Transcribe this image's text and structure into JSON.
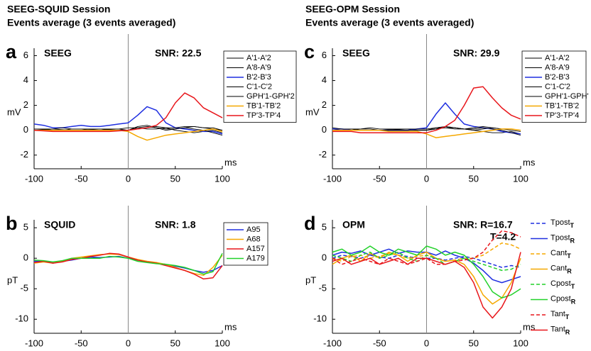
{
  "sessions": [
    {
      "title": "SEEG-SQUID Session",
      "subtitle": "Events average (3 events averaged)"
    },
    {
      "title": "SEEG-OPM Session",
      "subtitle": "Events average (3 events averaged)"
    }
  ],
  "chart_data": [
    {
      "type": "line",
      "panel": "a",
      "title": "SEEG",
      "snr": [
        "SNR: 22.5"
      ],
      "ylabel": "mV",
      "xlabel": "ms",
      "x": [
        -100,
        -90,
        -80,
        -70,
        -60,
        -50,
        -40,
        -30,
        -20,
        -10,
        0,
        10,
        20,
        30,
        40,
        50,
        60,
        70,
        80,
        90,
        100
      ],
      "xlim": [
        -100,
        100
      ],
      "xticks": [
        -100,
        -50,
        0,
        50,
        100
      ],
      "ylim": [
        -3.1,
        6.6
      ],
      "yticks": [
        -2,
        0,
        2,
        4,
        6
      ],
      "legend_box": true,
      "series": [
        {
          "name": "A'1-A'2",
          "color": "#000000",
          "values": [
            0,
            0.05,
            0.1,
            0.05,
            0,
            0,
            0.05,
            0.1,
            0.05,
            0,
            0,
            0.2,
            0.3,
            0.2,
            0.1,
            0.1,
            0.2,
            0.3,
            0.2,
            0.1,
            0
          ]
        },
        {
          "name": "A'8-A'9",
          "color": "#000000",
          "values": [
            0.1,
            0.1,
            0,
            0,
            0.1,
            0.1,
            0,
            0,
            0.1,
            0.1,
            0,
            0.1,
            0.2,
            0.3,
            0.2,
            0,
            -0.1,
            -0.2,
            -0.1,
            0,
            -0.2
          ]
        },
        {
          "name": "B'2-B'3",
          "color": "#1f2fe0",
          "values": [
            0.5,
            0.4,
            0.2,
            0.2,
            0.3,
            0.4,
            0.3,
            0.3,
            0.4,
            0.5,
            0.6,
            1.2,
            1.9,
            1.6,
            0.6,
            0.2,
            0.1,
            0,
            -0.1,
            -0.1,
            -0.3
          ]
        },
        {
          "name": "C'1-C'2",
          "color": "#000000",
          "values": [
            0,
            0,
            0,
            0,
            0,
            0,
            0,
            0,
            0,
            0,
            0,
            0.3,
            0.4,
            0.2,
            0,
            0.1,
            0.2,
            0.1,
            0,
            -0.2,
            -0.4
          ]
        },
        {
          "name": "GPH'1-GPH'2",
          "color": "#000000",
          "values": [
            0.1,
            0.1,
            0.1,
            0.2,
            0.1,
            0.1,
            0.1,
            0.1,
            0.1,
            0.1,
            0.2,
            0.2,
            0.1,
            0.1,
            0.2,
            0.2,
            0.3,
            0.3,
            0.2,
            0.2,
            0
          ]
        },
        {
          "name": "TB'1-TB'2",
          "color": "#f5a800",
          "values": [
            0,
            0,
            0,
            0,
            0,
            0,
            0,
            0,
            0,
            0,
            -0.1,
            -0.5,
            -0.8,
            -0.6,
            -0.4,
            -0.3,
            -0.2,
            -0.1,
            0,
            0.1,
            -0.1
          ]
        },
        {
          "name": "TP'3-TP'4",
          "color": "#e8161b",
          "values": [
            0,
            -0.05,
            -0.1,
            -0.1,
            -0.1,
            -0.1,
            -0.1,
            -0.1,
            -0.1,
            -0.05,
            0,
            0.1,
            0.2,
            0.4,
            1.0,
            2.2,
            3.0,
            2.6,
            1.8,
            1.4,
            1.0
          ]
        }
      ]
    },
    {
      "type": "line",
      "panel": "b",
      "title": "SQUID",
      "snr": [
        "SNR: 1.8"
      ],
      "ylabel": "pT",
      "xlabel": "ms",
      "x": [
        -100,
        -90,
        -80,
        -70,
        -60,
        -50,
        -40,
        -30,
        -20,
        -10,
        0,
        10,
        20,
        30,
        40,
        50,
        60,
        70,
        80,
        90,
        100
      ],
      "xlim": [
        -100,
        100
      ],
      "xticks": [
        -100,
        -50,
        0,
        50,
        100
      ],
      "ylim": [
        -12.3,
        6.3
      ],
      "yticks": [
        -10,
        -5,
        0,
        5
      ],
      "legend_box": true,
      "series": [
        {
          "name": "A95",
          "color": "#1f2fe0",
          "values": [
            -0.5,
            -0.5,
            -0.8,
            -0.5,
            -0.3,
            0,
            0.2,
            0.1,
            0.2,
            0.3,
            0,
            -0.3,
            -0.6,
            -0.8,
            -1,
            -1.3,
            -1.6,
            -2,
            -2.3,
            -2,
            -1.2
          ]
        },
        {
          "name": "A68",
          "color": "#f5a800",
          "values": [
            -0.8,
            -0.6,
            -0.8,
            -0.5,
            0,
            0.2,
            0.4,
            0.6,
            0.7,
            0.6,
            0.2,
            -0.2,
            -0.5,
            -0.7,
            -1,
            -1.5,
            -2,
            -2.5,
            -2.8,
            -1.5,
            0.5
          ]
        },
        {
          "name": "A157",
          "color": "#e8161b",
          "values": [
            -0.7,
            -0.5,
            -0.8,
            -0.6,
            -0.2,
            0,
            0.3,
            0.5,
            0.8,
            0.7,
            0.2,
            -0.3,
            -0.6,
            -0.8,
            -1.2,
            -1.6,
            -2,
            -2.6,
            -3.4,
            -3.2,
            -1.2
          ]
        },
        {
          "name": "A179",
          "color": "#22d12a",
          "values": [
            -0.3,
            -0.4,
            -0.6,
            -0.4,
            0,
            0,
            0,
            0,
            0.3,
            0.2,
            0,
            -0.5,
            -0.7,
            -0.9,
            -1,
            -1.2,
            -1.5,
            -2,
            -2.6,
            -2.2,
            0.8
          ]
        }
      ]
    },
    {
      "type": "line",
      "panel": "c",
      "title": "SEEG",
      "snr": [
        "SNR: 29.9"
      ],
      "ylabel": "mV",
      "xlabel": "ms",
      "x": [
        -100,
        -90,
        -80,
        -70,
        -60,
        -50,
        -40,
        -30,
        -20,
        -10,
        0,
        10,
        20,
        30,
        40,
        50,
        60,
        70,
        80,
        90,
        100
      ],
      "xlim": [
        -100,
        100
      ],
      "xticks": [
        -100,
        -50,
        0,
        50,
        100
      ],
      "ylim": [
        -3.1,
        6.6
      ],
      "yticks": [
        -2,
        0,
        2,
        4,
        6
      ],
      "legend_box": true,
      "series": [
        {
          "name": "A'1-A'2",
          "color": "#000000",
          "values": [
            0,
            0,
            0.1,
            0,
            0,
            0,
            0.05,
            0.05,
            0,
            0,
            0,
            0.1,
            0.2,
            0.2,
            0.1,
            0,
            0.1,
            0.2,
            0.1,
            0,
            -0.1
          ]
        },
        {
          "name": "A'8-A'9",
          "color": "#000000",
          "values": [
            0.1,
            0,
            0,
            0.1,
            0.1,
            0,
            0,
            0.1,
            0.1,
            0,
            0,
            0.1,
            0.3,
            0.2,
            0.1,
            0,
            -0.1,
            -0.2,
            -0.2,
            -0.1,
            -0.3
          ]
        },
        {
          "name": "B'2-B'3",
          "color": "#1f2fe0",
          "values": [
            0.1,
            0.1,
            0,
            0,
            0,
            0,
            0,
            0,
            0,
            0.1,
            0.2,
            1.3,
            2.2,
            1.3,
            0.5,
            0.3,
            0.2,
            0.1,
            -0.1,
            -0.2,
            -0.3
          ]
        },
        {
          "name": "C'1-C'2",
          "color": "#000000",
          "values": [
            0,
            0,
            0,
            0,
            0,
            0,
            0,
            0,
            0,
            0,
            0,
            0.2,
            0.3,
            0.2,
            0.1,
            0.1,
            0.2,
            0.1,
            0,
            -0.2,
            -0.4
          ]
        },
        {
          "name": "GPH'1-GPH'",
          "color": "#000000",
          "values": [
            0.2,
            0.1,
            0.1,
            0.1,
            0.2,
            0.1,
            0.1,
            0.1,
            0.1,
            0.1,
            0.1,
            0.2,
            0.2,
            0.1,
            0.1,
            0.2,
            0.3,
            0.2,
            0.1,
            0.1,
            0
          ]
        },
        {
          "name": "TB'1-TB'2",
          "color": "#f5a800",
          "values": [
            0,
            0,
            0,
            0,
            0,
            0,
            -0.1,
            -0.1,
            -0.1,
            -0.1,
            -0.3,
            -0.6,
            -0.5,
            -0.4,
            -0.3,
            -0.2,
            -0.1,
            0,
            0.1,
            0.1,
            0
          ]
        },
        {
          "name": "TP'3-TP'4",
          "color": "#e8161b",
          "values": [
            -0.1,
            -0.1,
            -0.1,
            -0.2,
            -0.2,
            -0.2,
            -0.2,
            -0.2,
            -0.2,
            -0.2,
            -0.2,
            0,
            0.3,
            0.8,
            2.0,
            3.4,
            3.5,
            2.6,
            1.8,
            1.2,
            0.9
          ]
        }
      ]
    },
    {
      "type": "line",
      "panel": "d",
      "title": "OPM",
      "snr": [
        "SNR: R=16.7",
        "T=4.2"
      ],
      "ylabel": "pT",
      "xlabel": "ms",
      "x": [
        -100,
        -90,
        -80,
        -70,
        -60,
        -50,
        -40,
        -30,
        -20,
        -10,
        0,
        10,
        20,
        30,
        40,
        50,
        60,
        70,
        80,
        90,
        100
      ],
      "xlim": [
        -100,
        100
      ],
      "xticks": [
        -100,
        -50,
        0,
        50,
        100
      ],
      "ylim": [
        -12.3,
        6.3
      ],
      "yticks": [
        -10,
        -5,
        0,
        5
      ],
      "legend_box": false,
      "series": [
        {
          "name": "Tpost",
          "sub": "T",
          "dash": true,
          "color": "#1f2fe0",
          "values": [
            0,
            0.5,
            0.3,
            0,
            0.5,
            0.2,
            0,
            0.5,
            0.3,
            0,
            0,
            0,
            -0.3,
            0,
            0.3,
            0,
            -0.5,
            -1,
            -1.5,
            -1.2,
            -1.5
          ]
        },
        {
          "name": "Tpost",
          "sub": "R",
          "dash": false,
          "color": "#1f2fe0",
          "values": [
            0.5,
            1,
            0.8,
            1.2,
            0.5,
            1,
            1.5,
            0.8,
            1.2,
            1,
            1,
            0.5,
            1.2,
            0.5,
            0,
            -0.8,
            -2,
            -3.5,
            -4,
            -3.5,
            -3
          ]
        },
        {
          "name": "Cant",
          "sub": "T",
          "dash": true,
          "color": "#f5a800",
          "values": [
            0,
            -0.5,
            0.3,
            0.5,
            0,
            0.3,
            0.8,
            0.5,
            0,
            0.3,
            0.5,
            0,
            -0.5,
            -0.3,
            0,
            0,
            0.5,
            1.5,
            2.5,
            2.2,
            1.5
          ]
        },
        {
          "name": "Cant",
          "sub": "R",
          "dash": false,
          "color": "#f5a800",
          "values": [
            -1,
            0,
            0.5,
            -0.5,
            0.8,
            0,
            1,
            0.5,
            -0.5,
            0.5,
            1,
            0,
            -0.5,
            -0.3,
            -1,
            -3,
            -6,
            -7.5,
            -6.5,
            -4,
            0
          ]
        },
        {
          "name": "Cpost",
          "sub": "T",
          "dash": true,
          "color": "#22d12a",
          "values": [
            0.5,
            0,
            -0.5,
            0.5,
            1,
            0,
            0.5,
            1,
            0,
            -0.5,
            0.5,
            0,
            -1,
            -0.5,
            0,
            -0.5,
            -1,
            -1.5,
            -2,
            -1.8,
            -1
          ]
        },
        {
          "name": "Cpost",
          "sub": "R",
          "dash": false,
          "color": "#22d12a",
          "values": [
            1,
            1.5,
            0.5,
            1,
            2,
            1,
            0.5,
            1.5,
            1,
            0.5,
            2,
            1.5,
            0.5,
            1,
            0.5,
            -1,
            -3,
            -5.5,
            -6.5,
            -6,
            -5
          ]
        },
        {
          "name": "Tant",
          "sub": "T",
          "dash": true,
          "color": "#e8161b",
          "values": [
            0,
            -1,
            -0.5,
            0,
            -0.5,
            -1,
            0,
            -0.5,
            -1,
            -0.5,
            0,
            -1,
            -1,
            -0.5,
            -0.3,
            0,
            1,
            3,
            4.5,
            4.2,
            3.5
          ]
        },
        {
          "name": "Tant",
          "sub": "R",
          "dash": false,
          "color": "#e8161b",
          "values": [
            -0.5,
            0,
            -1,
            -0.5,
            0,
            -1,
            -0.5,
            0,
            -1,
            0,
            0,
            -0.5,
            -1,
            -0.5,
            -1.5,
            -4,
            -8,
            -9.8,
            -8,
            -5,
            1
          ]
        }
      ]
    }
  ]
}
